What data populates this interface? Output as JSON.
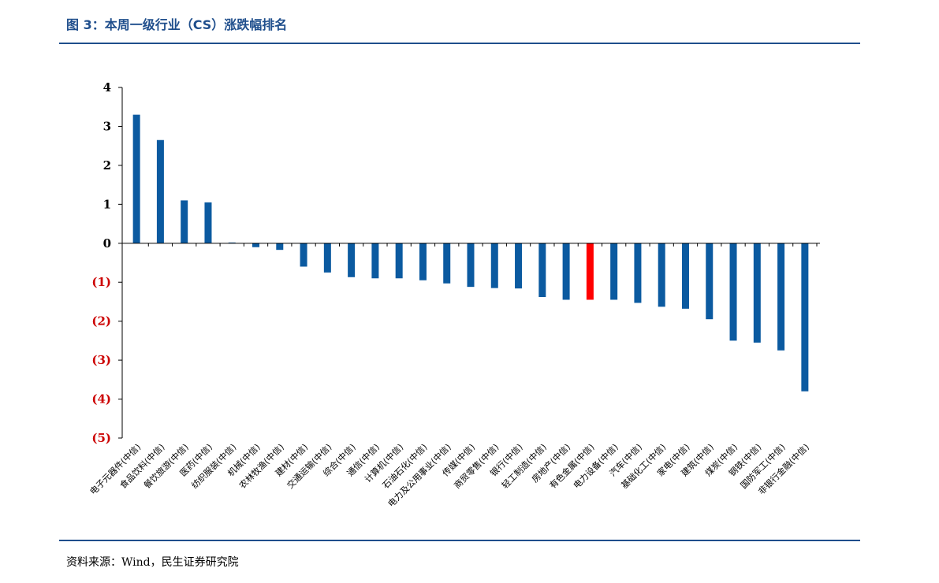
{
  "header": {
    "title": "图 3：本周一级行业（CS）涨跌幅排名"
  },
  "footer": {
    "source": "资料来源：Wind，民生证券研究院"
  },
  "colors": {
    "bar": "#0b5aa0",
    "highlight": "#ff0000",
    "negative_tick": "#cc0000",
    "positive_tick": "#000000",
    "accent": "#1f4e8c"
  },
  "chart_data": {
    "type": "bar",
    "title": "",
    "xlabel": "",
    "ylabel": "",
    "ylim": [
      -5,
      4
    ],
    "yticks": [
      4,
      3,
      2,
      1,
      0,
      -1,
      -2,
      -3,
      -4,
      -5
    ],
    "ytick_labels": [
      "4",
      "3",
      "2",
      "1",
      "0",
      "(1)",
      "(2)",
      "(3)",
      "(4)",
      "(5)"
    ],
    "grid": false,
    "legend": "none",
    "highlight_category": "有色金属(中信)",
    "categories": [
      "电子元器件(中信)",
      "食品饮料(中信)",
      "餐饮旅游(中信)",
      "医药(中信)",
      "纺织服装(中信)",
      "机械(中信)",
      "农林牧渔(中信)",
      "建材(中信)",
      "交通运输(中信)",
      "综合(中信)",
      "通信(中信)",
      "计算机(中信)",
      "石油石化(中信)",
      "电力及公用事业(中信)",
      "传媒(中信)",
      "商贸零售(中信)",
      "银行(中信)",
      "轻工制造(中信)",
      "房地产(中信)",
      "有色金属(中信)",
      "电力设备(中信)",
      "汽车(中信)",
      "基础化工(中信)",
      "家电(中信)",
      "建筑(中信)",
      "煤炭(中信)",
      "钢铁(中信)",
      "国防军工(中信)",
      "非银行金融(中信)"
    ],
    "values": [
      3.3,
      2.65,
      1.1,
      1.05,
      0.02,
      -0.1,
      -0.17,
      -0.6,
      -0.75,
      -0.87,
      -0.9,
      -0.9,
      -0.95,
      -1.03,
      -1.12,
      -1.15,
      -1.16,
      -1.38,
      -1.45,
      -1.45,
      -1.45,
      -1.53,
      -1.63,
      -1.68,
      -1.95,
      -2.5,
      -2.55,
      -2.75,
      -3.8
    ]
  }
}
